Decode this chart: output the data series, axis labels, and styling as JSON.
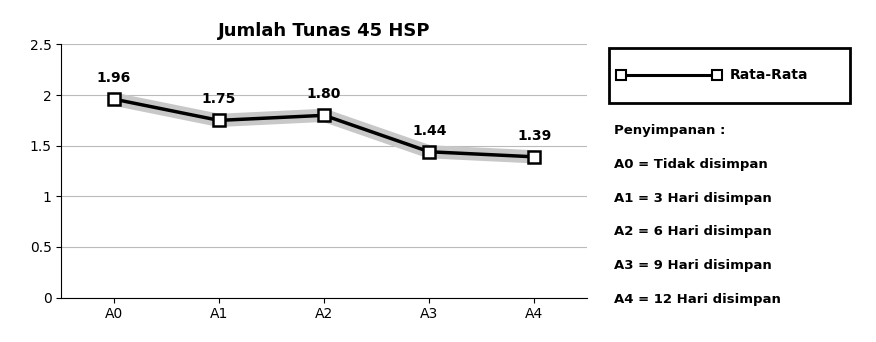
{
  "title": "Jumlah Tunas 45 HSP",
  "categories": [
    "A0",
    "A1",
    "A2",
    "A3",
    "A4"
  ],
  "values": [
    1.96,
    1.75,
    1.8,
    1.44,
    1.39
  ],
  "ylim": [
    0,
    2.5
  ],
  "yticks": [
    0,
    0.5,
    1,
    1.5,
    2,
    2.5
  ],
  "line_color": "#000000",
  "line_width": 2.5,
  "marker": "s",
  "marker_size": 8,
  "marker_facecolor": "#ffffff",
  "marker_edgecolor": "#000000",
  "shadow_color": "#c8c8c8",
  "legend_label": "Rata-Rata",
  "annotation_notes": [
    "Penyimpanan :",
    "A0 = Tidak disimpan",
    "A1 = 3 Hari disimpan",
    "A2 = 6 Hari disimpan",
    "A3 = 9 Hari disimpan",
    "A4 = 12 Hari disimpan"
  ],
  "title_fontsize": 13,
  "tick_fontsize": 10,
  "annotation_fontsize": 9.5,
  "legend_fontsize": 10
}
